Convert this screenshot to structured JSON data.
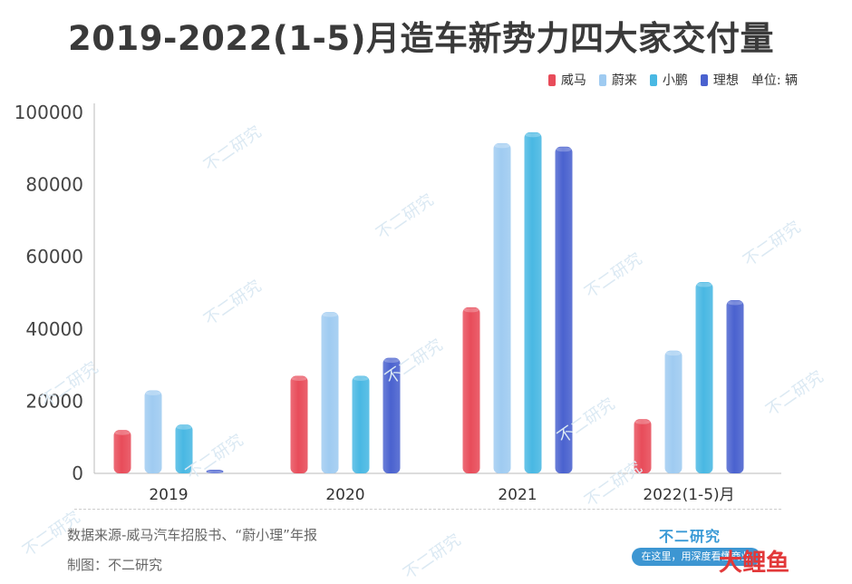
{
  "page": {
    "title": "2019-2022(1-5)月造车新势力四大家交付量",
    "unit_label": "单位: 辆",
    "source": "数据来源-威马汽车招股书、“蔚小理”年报",
    "maker": "制图：不二研究",
    "watermark": "不二研究",
    "brand": "不二研究",
    "brand_tagline": "在这里，用深度看懂商业",
    "corner_logo": "大鲤鱼"
  },
  "chart_data": {
    "type": "bar",
    "title": "2019-2022(1-5)月造车新势力四大家交付量",
    "categories": [
      "2019",
      "2020",
      "2021",
      "2022(1-5)月"
    ],
    "series": [
      {
        "name": "威马",
        "color": "#e84c5a",
        "values": [
          12000,
          27000,
          46000,
          15000
        ]
      },
      {
        "name": "蔚来",
        "color": "#9fcbf1",
        "values": [
          23000,
          44700,
          91500,
          34000
        ]
      },
      {
        "name": "小鹏",
        "color": "#49b8e3",
        "values": [
          13500,
          27000,
          94500,
          53000
        ]
      },
      {
        "name": "理想",
        "color": "#4a62cf",
        "values": [
          1000,
          32000,
          90500,
          48000
        ]
      }
    ],
    "ylim": [
      0,
      100000
    ],
    "yticks": [
      0,
      20000,
      40000,
      60000,
      80000,
      100000
    ],
    "grid": false,
    "legend_position": "top-right"
  }
}
